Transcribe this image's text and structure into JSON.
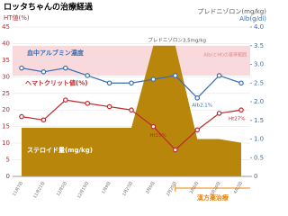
{
  "chart_data": {
    "type": "line",
    "title": "ロッタちゃんの治療経過",
    "ylabel": "HT値(%)",
    "y2label": "プレドニゾロン(mg/kg)",
    "y2label2": "Alb(g/dl)",
    "categories": [
      "11月7日",
      "11月21日",
      "12月5日",
      "12月19日",
      "1月9日",
      "1月23日",
      "2月6日",
      "2月20日",
      "3月6日",
      "3月20日",
      "4月3日"
    ],
    "ylim": [
      0,
      45
    ],
    "yticks": [
      0,
      5,
      10,
      15,
      20,
      25,
      30,
      35,
      40,
      45
    ],
    "y2lim": [
      0,
      4
    ],
    "y2ticks": [
      0,
      {
        "value": 0.5,
        "label": "0.5"
      },
      {
        "value": 1,
        "label": "1.0"
      },
      {
        "value": 1.5,
        "label": "1.5"
      },
      {
        "value": 2,
        "label": "2.0"
      },
      {
        "value": 2.5,
        "label": "2.5"
      },
      {
        "value": 3,
        "label": "3.0"
      },
      {
        "value": 3.5,
        "label": "3.5"
      },
      {
        "value": 4,
        "label": "4.0"
      }
    ],
    "ref_range": [
      2.7,
      3.5
    ],
    "ref_label": "Alb(とHt)の基準範囲",
    "series": [
      {
        "name": "ステロイド量(mg/kg)",
        "type": "area",
        "axis": "y2",
        "color": "#b8860b",
        "values": [
          1.3,
          1.3,
          1.3,
          1.3,
          1.3,
          1.3,
          3.5,
          3.5,
          1.0,
          1.0,
          0.9
        ]
      },
      {
        "name": "血中アルブミン濃度",
        "type": "line",
        "axis": "y2",
        "color": "#3a6db0",
        "values": [
          2.9,
          2.8,
          2.9,
          2.7,
          2.5,
          2.5,
          2.6,
          2.7,
          2.1,
          2.7,
          2.5
        ]
      },
      {
        "name": "ヘマトクリット値(%)",
        "type": "line",
        "axis": "y",
        "color": "#c0282d",
        "values": [
          18,
          17,
          23,
          22,
          21,
          20,
          15,
          8,
          14,
          19,
          20
        ]
      }
    ],
    "annotations": [
      "プレドニゾロン3.5mg/kg",
      "Alb2.1%",
      "Ht15%",
      "Ht27%"
    ],
    "treatment": "漢方薬治療"
  }
}
